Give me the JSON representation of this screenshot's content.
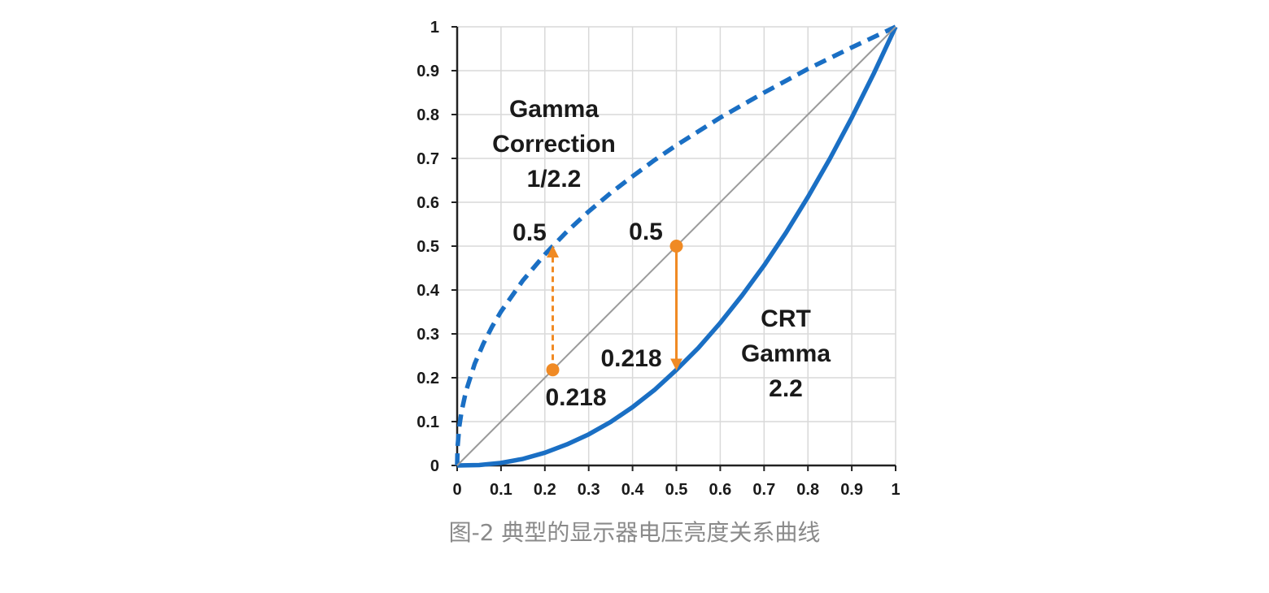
{
  "chart_data": {
    "type": "line",
    "xlim": [
      0,
      1
    ],
    "ylim": [
      0,
      1
    ],
    "x_ticks": [
      "0",
      "0.1",
      "0.2",
      "0.3",
      "0.4",
      "0.5",
      "0.6",
      "0.7",
      "0.8",
      "0.9",
      "1"
    ],
    "y_ticks": [
      "0",
      "0.1",
      "0.2",
      "0.3",
      "0.4",
      "0.5",
      "0.6",
      "0.7",
      "0.8",
      "0.9",
      "1"
    ],
    "grid": true,
    "series": [
      {
        "style": "dashed",
        "color": "#1a6fc4",
        "x": [
          0,
          0.001,
          0.005,
          0.01,
          0.02,
          0.04,
          0.06,
          0.08,
          0.1,
          0.15,
          0.2,
          0.218,
          0.25,
          0.3,
          0.35,
          0.4,
          0.45,
          0.5,
          0.6,
          0.7,
          0.8,
          0.9,
          1
        ],
        "y": [
          0,
          0.043,
          0.09,
          0.123,
          0.169,
          0.232,
          0.278,
          0.317,
          0.351,
          0.422,
          0.481,
          0.5,
          0.533,
          0.579,
          0.621,
          0.659,
          0.696,
          0.73,
          0.793,
          0.85,
          0.904,
          0.953,
          1
        ]
      },
      {
        "style": "solid",
        "color": "#1a6fc4",
        "x": [
          0,
          0.05,
          0.1,
          0.15,
          0.2,
          0.25,
          0.3,
          0.35,
          0.4,
          0.45,
          0.5,
          0.55,
          0.6,
          0.65,
          0.7,
          0.75,
          0.8,
          0.85,
          0.9,
          0.95,
          1
        ],
        "y": [
          0,
          0.001,
          0.006,
          0.015,
          0.029,
          0.048,
          0.071,
          0.099,
          0.133,
          0.172,
          0.218,
          0.268,
          0.325,
          0.388,
          0.456,
          0.531,
          0.612,
          0.699,
          0.793,
          0.893,
          1
        ]
      },
      {
        "style": "solid",
        "color": "#9a9a9a",
        "x": [
          0,
          1
        ],
        "y": [
          0,
          1
        ]
      }
    ],
    "points": [
      {
        "x": 0.218,
        "y": 0.218,
        "color": "#f08a24"
      },
      {
        "x": 0.5,
        "y": 0.5,
        "color": "#f08a24"
      }
    ],
    "arrows": [
      {
        "x": 0.218,
        "from": 0.218,
        "to": 0.5,
        "style": "dashed",
        "color": "#f08a24"
      },
      {
        "x": 0.5,
        "from": 0.5,
        "to": 0.218,
        "style": "solid",
        "color": "#f08a24"
      }
    ],
    "annotations": {
      "gamma_correction": [
        "Gamma",
        "Correction",
        "1/2.2"
      ],
      "crt_gamma": [
        "CRT",
        "Gamma",
        "2.2"
      ],
      "corr_val_top": "0.5",
      "corr_val_bottom": "0.218",
      "crt_val_top": "0.5",
      "crt_val_bottom": "0.218"
    }
  },
  "caption": "图-2 典型的显示器电压亮度关系曲线"
}
